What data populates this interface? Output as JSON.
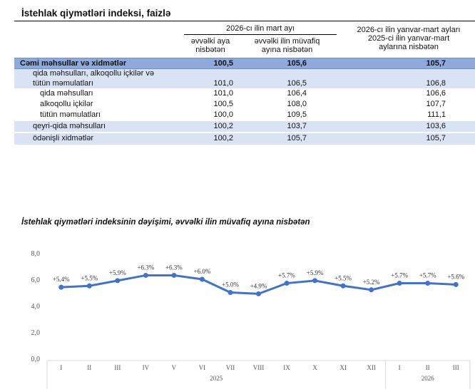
{
  "table": {
    "title": "İstehlak qiymətləri indeksi, faizlə",
    "group1": "2026-cı ilin mart ayı",
    "col1": [
      "əvvəlki aya",
      "nisbətən"
    ],
    "col2": [
      "əvvəlki ilin müvafiq",
      "ayına nisbətən"
    ],
    "col3": [
      "2026-cı ilin yanvar-mart ayları",
      "2025-ci ilin yanvar-mart",
      "aylarına nisbətən"
    ],
    "rows": [
      {
        "label": "Cəmi məhsullar və xidmətlər",
        "v": [
          "100,5",
          "105,6",
          "105,7"
        ]
      },
      {
        "label": "qida məhsulları, alkoqollu içkilər və",
        "label2": "tütün məmulatları",
        "v": [
          "101,0",
          "106,5",
          "106,8"
        ]
      },
      {
        "label": "qida məhsulları",
        "v": [
          "101,0",
          "106,4",
          "106,6"
        ]
      },
      {
        "label": "alkoqollu içkilər",
        "v": [
          "100,5",
          "108,0",
          "107,7"
        ]
      },
      {
        "label": "tütün məmulatları",
        "v": [
          "100,0",
          "109,5",
          "111,1"
        ]
      },
      {
        "label": "qeyri-qida məhsulları",
        "v": [
          "100,2",
          "103,7",
          "103,6"
        ]
      },
      {
        "label": "ödənişli xidmətlər",
        "v": [
          "100,2",
          "105,7",
          "105,7"
        ]
      }
    ]
  },
  "chart_data": {
    "type": "line",
    "title": "İstehlak qiymətləri indeksinin dəyişimi, əvvəlki ilin müvafiq ayına nisbətən",
    "categories": [
      "I",
      "II",
      "III",
      "IV",
      "V",
      "VI",
      "VII",
      "VIII",
      "IX",
      "X",
      "XI",
      "XII",
      "I",
      "II",
      "III"
    ],
    "groups": [
      {
        "label": "2025",
        "count": 12
      },
      {
        "label": "2026",
        "count": 3
      }
    ],
    "values": [
      5.4,
      5.5,
      5.9,
      6.3,
      6.3,
      6.0,
      5.0,
      4.9,
      5.7,
      5.9,
      5.5,
      5.2,
      5.7,
      5.7,
      5.6
    ],
    "data_labels": [
      "+5.4%",
      "+5.5%",
      "+5.9%",
      "+6.3%",
      "+6.3%",
      "+6.0%",
      "+5.0%",
      "+4.9%",
      "+5.7%",
      "+5.9%",
      "+5.5%",
      "+5.2%",
      "+5.7%",
      "+5.7%",
      "+5.6%"
    ],
    "yticks": [
      "0,0",
      "2,0",
      "4,0",
      "6,0",
      "8,0"
    ],
    "ylim": [
      0,
      8
    ],
    "grid": false,
    "color": "#4472c4"
  }
}
